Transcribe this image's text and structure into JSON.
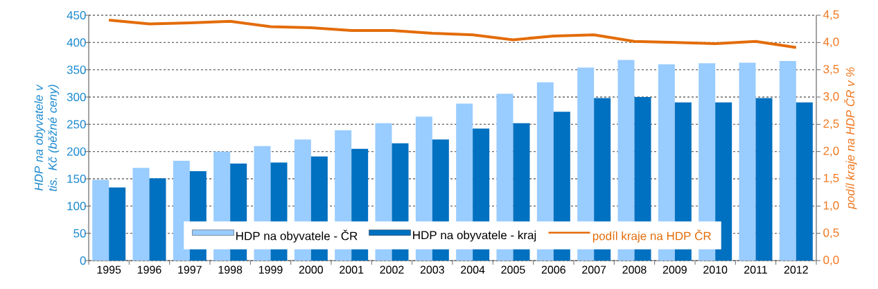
{
  "chart_data": {
    "type": "bar",
    "ylabel": "HDP na obyvatele v tis. Kč (běžné ceny)",
    "y2label": "podíl kraje na HDP ČR v %",
    "categories": [
      "1995",
      "1996",
      "1997",
      "1998",
      "1999",
      "2000",
      "2001",
      "2002",
      "2003",
      "2004",
      "2005",
      "2006",
      "2007",
      "2008",
      "2009",
      "2010",
      "2011",
      "2012"
    ],
    "series": [
      {
        "name": "HDP na obyvatele - ČR",
        "color": "#99ccff",
        "values": [
          148,
          170,
          183,
          200,
          210,
          222,
          239,
          252,
          264,
          288,
          306,
          327,
          354,
          368,
          360,
          362,
          363,
          366
        ]
      },
      {
        "name": "HDP na obyvatele - kraj",
        "color": "#0070c0",
        "values": [
          134,
          151,
          164,
          178,
          180,
          191,
          205,
          215,
          222,
          242,
          252,
          273,
          298,
          300,
          290,
          290,
          298,
          290
        ]
      },
      {
        "name": "podíl kraje na HDP ČR",
        "type": "line",
        "axis": "y2",
        "color": "#e36c09",
        "values": [
          4.41,
          4.34,
          4.36,
          4.39,
          4.29,
          4.27,
          4.22,
          4.22,
          4.17,
          4.14,
          4.05,
          4.12,
          4.14,
          4.02,
          4.0,
          3.98,
          4.02,
          3.91
        ]
      }
    ],
    "ylim": [
      0,
      450
    ],
    "yticks": [
      0,
      50,
      100,
      150,
      200,
      250,
      300,
      350,
      400,
      450
    ],
    "y2lim": [
      0,
      4.5
    ],
    "y2ticks": [
      {
        "value": 0,
        "label": "0,0"
      },
      {
        "value": 0.5,
        "label": "0,5"
      },
      {
        "value": 1,
        "label": "1,0"
      },
      {
        "value": 1.5,
        "label": "1,5"
      },
      {
        "value": 2,
        "label": "2,0"
      },
      {
        "value": 2.5,
        "label": "2,5"
      },
      {
        "value": 3,
        "label": "3,0"
      },
      {
        "value": 3.5,
        "label": "3,5"
      },
      {
        "value": 4,
        "label": "4,0"
      },
      {
        "value": 4.5,
        "label": "4,5"
      }
    ],
    "grid": "y",
    "legend": "bottom"
  }
}
